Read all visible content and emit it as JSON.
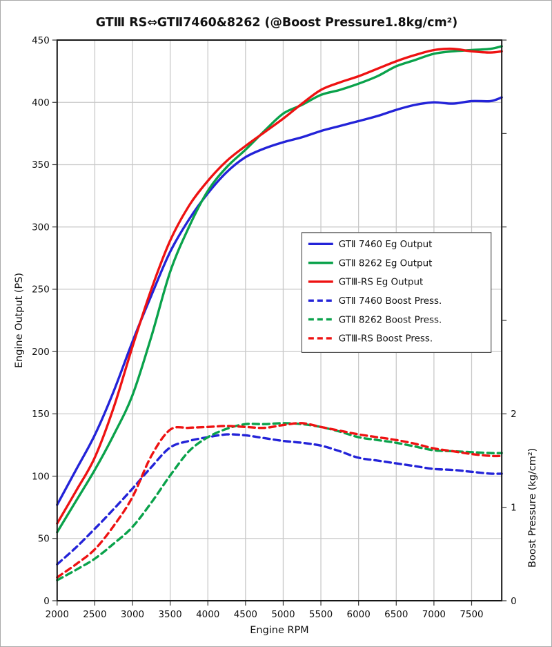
{
  "chart_data": {
    "type": "line",
    "title": "GTⅢ RS⇔GTⅡ7460&8262 (@Boost Pressure1.8kg/cm²)",
    "xlabel": "Engine RPM",
    "ylabel_left": "Engine Output (PS)",
    "ylabel_right": "Boost Pressure (kg/cm²)",
    "x_range": [
      2000,
      7900
    ],
    "x_ticks": [
      2000,
      2500,
      3000,
      3500,
      4000,
      4500,
      5000,
      5500,
      6000,
      6500,
      7000,
      7500
    ],
    "y_left_range": [
      0,
      450
    ],
    "y_left_ticks": [
      0,
      50,
      100,
      150,
      200,
      250,
      300,
      350,
      400,
      450
    ],
    "y_right_ticks": [
      0,
      1,
      2,
      3,
      4,
      5,
      6
    ],
    "y_right_labeled_ticks": [
      0,
      1,
      2
    ],
    "y_right_per_left": 75,
    "grid": true,
    "grid_color": "#c9c9c9",
    "border_color": "#141414",
    "legend_position": "center-right",
    "x": [
      2000,
      2250,
      2500,
      2750,
      3000,
      3250,
      3500,
      3750,
      4000,
      4250,
      4500,
      4750,
      5000,
      5250,
      5500,
      5750,
      6000,
      6250,
      6500,
      6750,
      7000,
      7250,
      7500,
      7750,
      7900
    ],
    "series": [
      {
        "name": "GTⅡ 7460 Eg Output",
        "color": "#2323d8",
        "style": "solid",
        "axis": "left",
        "values": [
          77,
          105,
          133,
          168,
          208,
          245,
          280,
          306,
          327,
          344,
          356,
          363,
          368,
          372,
          377,
          381,
          385,
          389,
          394,
          398,
          400,
          399,
          401,
          401,
          404
        ]
      },
      {
        "name": "GTⅡ 8262 Eg Output",
        "color": "#0aa24b",
        "style": "solid",
        "axis": "left",
        "values": [
          55,
          80,
          105,
          133,
          165,
          212,
          264,
          300,
          329,
          348,
          362,
          377,
          391,
          398,
          406,
          410,
          415,
          421,
          429,
          434,
          439,
          441,
          442,
          443,
          445
        ]
      },
      {
        "name": "GTⅢ-RS Eg Output",
        "color": "#ee1212",
        "style": "solid",
        "axis": "left",
        "values": [
          62,
          88,
          115,
          155,
          204,
          250,
          289,
          317,
          337,
          353,
          365,
          376,
          387,
          399,
          410,
          416,
          421,
          427,
          433,
          438,
          442,
          443,
          441,
          440,
          441
        ]
      },
      {
        "name": "GTⅡ 7460 Boost Press.",
        "color": "#2323d8",
        "style": "dashed",
        "axis": "right",
        "values": [
          0.39,
          0.57,
          0.77,
          0.98,
          1.2,
          1.43,
          1.64,
          1.71,
          1.75,
          1.78,
          1.77,
          1.74,
          1.71,
          1.69,
          1.66,
          1.6,
          1.53,
          1.5,
          1.47,
          1.44,
          1.41,
          1.4,
          1.38,
          1.36,
          1.36
        ]
      },
      {
        "name": "GTⅡ 8262 Boost Press.",
        "color": "#0aa24b",
        "style": "dashed",
        "axis": "right",
        "values": [
          0.22,
          0.33,
          0.45,
          0.61,
          0.79,
          1.05,
          1.34,
          1.6,
          1.75,
          1.84,
          1.89,
          1.89,
          1.9,
          1.89,
          1.86,
          1.81,
          1.75,
          1.72,
          1.69,
          1.65,
          1.61,
          1.6,
          1.59,
          1.58,
          1.58
        ]
      },
      {
        "name": "GTⅢ-RS Boost Press.",
        "color": "#ee1212",
        "style": "dashed",
        "axis": "right",
        "values": [
          0.25,
          0.39,
          0.55,
          0.8,
          1.11,
          1.55,
          1.83,
          1.85,
          1.86,
          1.87,
          1.86,
          1.85,
          1.88,
          1.9,
          1.86,
          1.82,
          1.78,
          1.75,
          1.72,
          1.68,
          1.63,
          1.6,
          1.57,
          1.55,
          1.55
        ]
      }
    ]
  }
}
